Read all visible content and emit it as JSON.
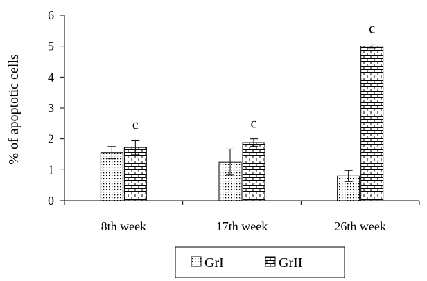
{
  "chart_data": {
    "type": "bar",
    "categories": [
      "8th week",
      "17th week",
      "26th week"
    ],
    "series": [
      {
        "name": "GrI",
        "values": [
          1.55,
          1.25,
          0.8
        ],
        "errors": [
          0.2,
          0.42,
          0.18
        ],
        "pattern": "dots"
      },
      {
        "name": "GrII",
        "values": [
          1.72,
          1.88,
          5.0
        ],
        "errors": [
          0.24,
          0.12,
          0.07
        ],
        "pattern": "bricks"
      }
    ],
    "annotations": [
      {
        "category": "8th week",
        "series": "GrII",
        "text": "c"
      },
      {
        "category": "17th week",
        "series": "GrII",
        "text": "c"
      },
      {
        "category": "26th week",
        "series": "GrII",
        "text": "c"
      }
    ],
    "title": "",
    "xlabel": "",
    "ylabel": "% of apoptotic cells",
    "ylim": [
      0,
      6
    ],
    "yticks": [
      0,
      1,
      2,
      3,
      4,
      5,
      6
    ],
    "grid": false,
    "legend_position": "bottom"
  }
}
